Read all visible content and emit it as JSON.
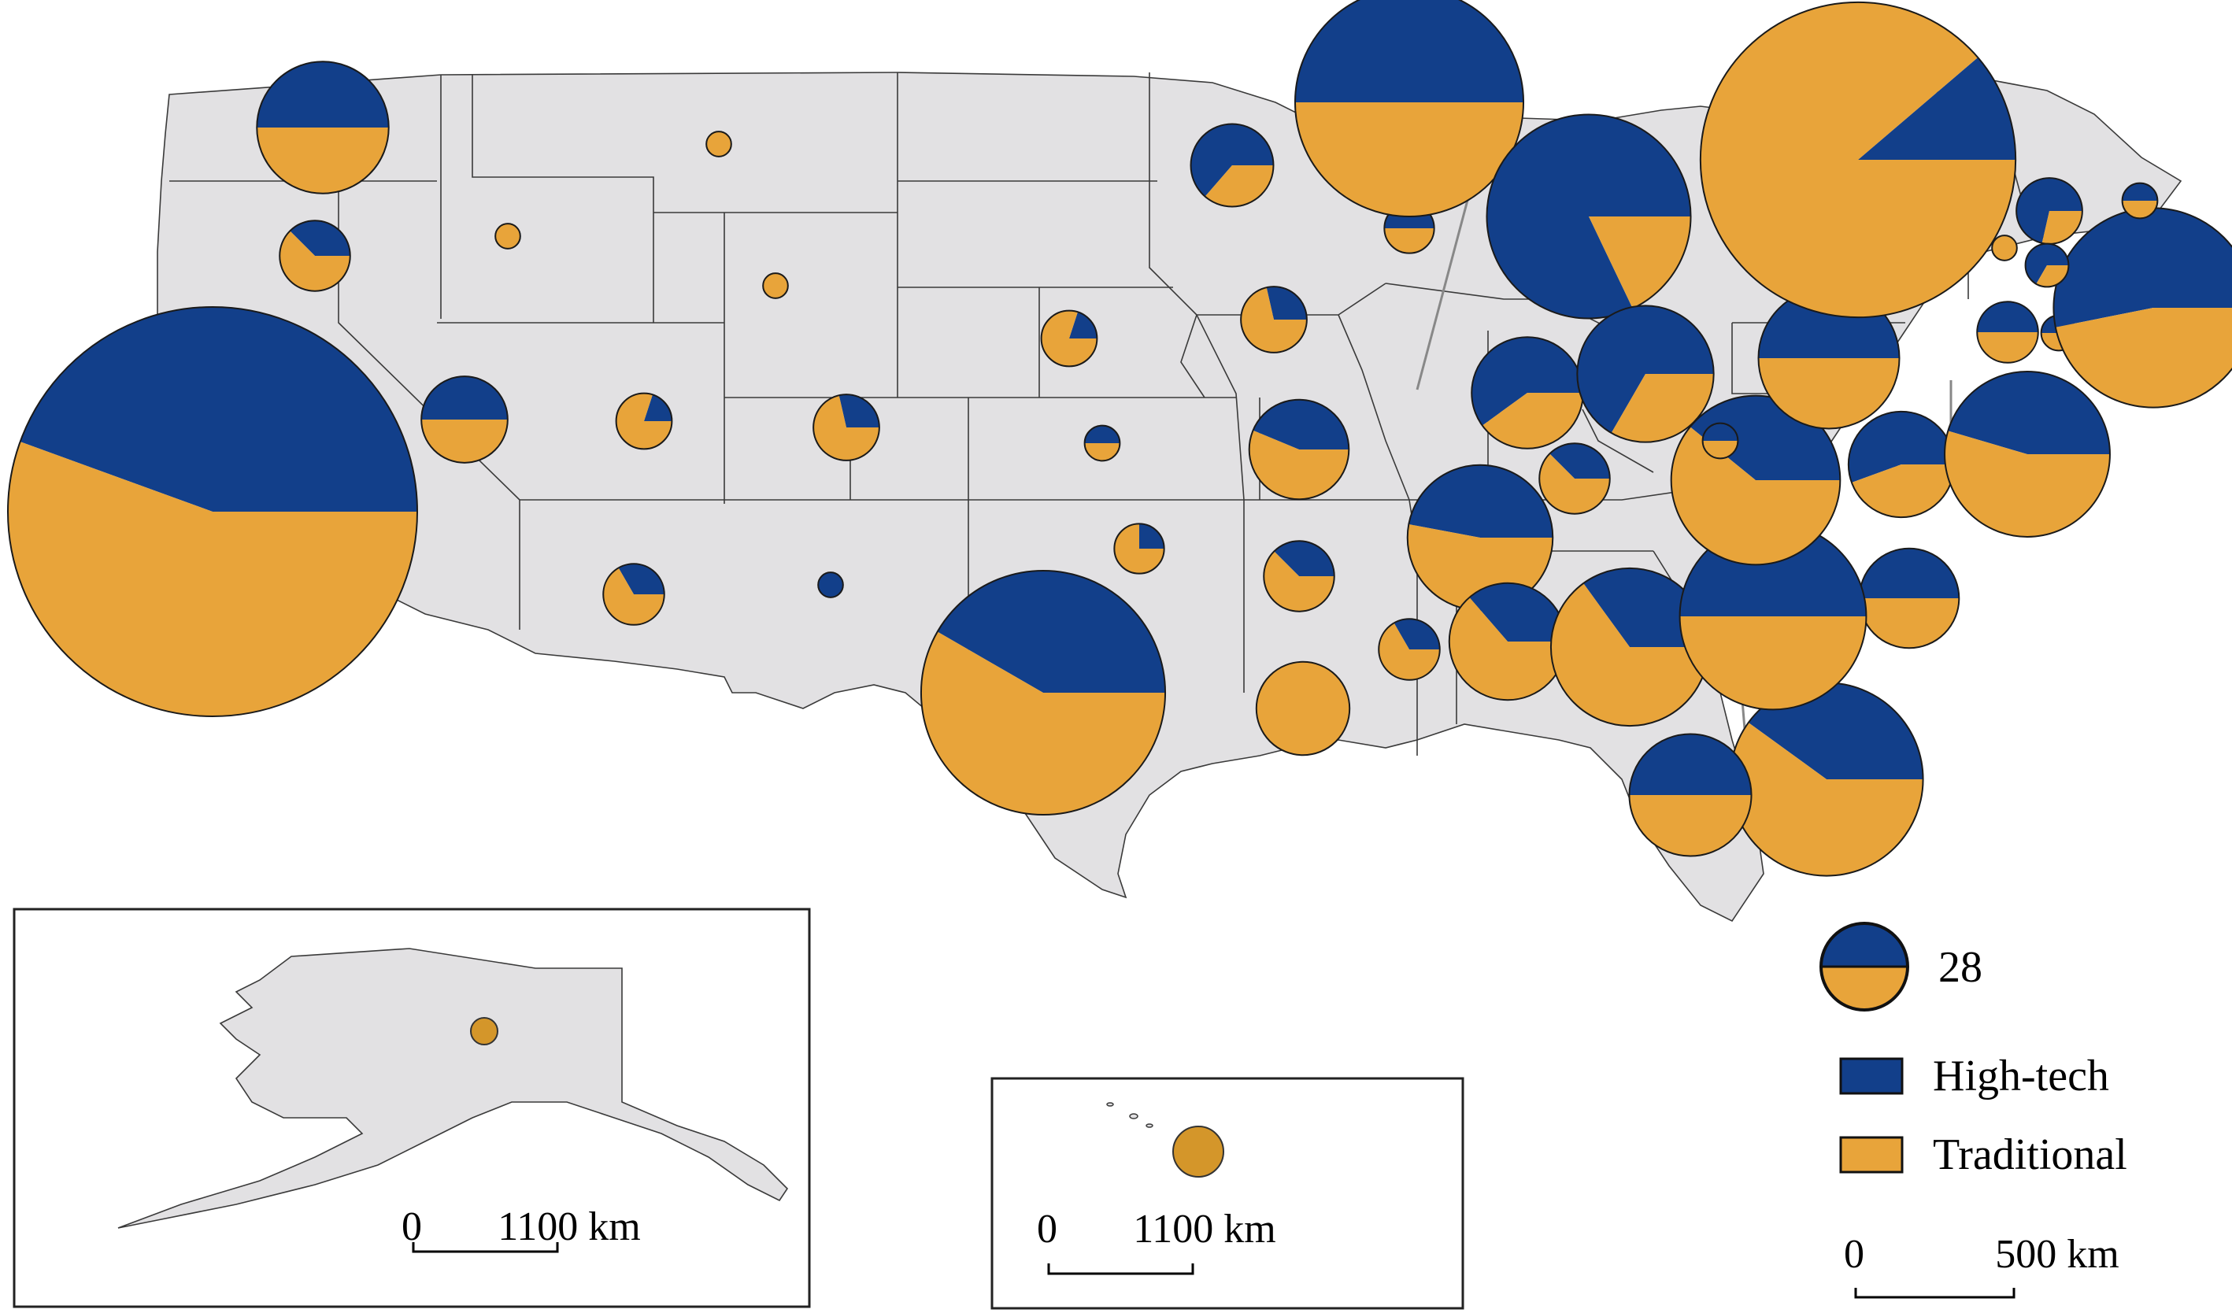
{
  "colors": {
    "high_tech": "#123f8a",
    "traditional": "#e8a43a",
    "state_fill": "#e2e1e3",
    "hawaii_symbol": "#d4962a",
    "alaska_symbol": "#d4962a"
  },
  "legend": {
    "size_value": "28",
    "categories": [
      {
        "label": "High-tech",
        "color": "#123f8a"
      },
      {
        "label": "Traditional",
        "color": "#e8a43a"
      }
    ]
  },
  "scale_bars": {
    "main": {
      "zero": "0",
      "end": "500 km"
    },
    "alaska": {
      "zero": "0",
      "end": "1100 km"
    },
    "hawaii": {
      "zero": "0",
      "end": "1100 km"
    }
  },
  "chart_data": {
    "type": "pie",
    "series_names": [
      "High-tech",
      "Traditional"
    ],
    "note_units": "values are counts; circle area proportional to total",
    "pies": [
      {
        "state": "California",
        "high_tech": 120,
        "traditional": 150
      },
      {
        "state": "Washington",
        "high_tech": 14,
        "traditional": 14
      },
      {
        "state": "Oregon",
        "high_tech": 3,
        "traditional": 5
      },
      {
        "state": "Idaho",
        "high_tech": 0,
        "traditional": 1
      },
      {
        "state": "Montana",
        "high_tech": 0,
        "traditional": 1
      },
      {
        "state": "Wyoming",
        "high_tech": 0,
        "traditional": 1
      },
      {
        "state": "Nevada",
        "high_tech": 6,
        "traditional": 6
      },
      {
        "state": "Utah",
        "high_tech": 1,
        "traditional": 4
      },
      {
        "state": "Colorado",
        "high_tech": 2,
        "traditional": 5
      },
      {
        "state": "Arizona",
        "high_tech": 2,
        "traditional": 4
      },
      {
        "state": "New Mexico",
        "high_tech": 1,
        "traditional": 0
      },
      {
        "state": "Nebraska",
        "high_tech": 1,
        "traditional": 4
      },
      {
        "state": "Kansas",
        "high_tech": 1,
        "traditional": 1
      },
      {
        "state": "Oklahoma",
        "high_tech": 1,
        "traditional": 3
      },
      {
        "state": "Texas",
        "high_tech": 40,
        "traditional": 56
      },
      {
        "state": "Minnesota",
        "high_tech": 7,
        "traditional": 4
      },
      {
        "state": "Iowa",
        "high_tech": 2,
        "traditional": 5
      },
      {
        "state": "Missouri",
        "high_tech": 7,
        "traditional": 9
      },
      {
        "state": "Arkansas",
        "high_tech": 3,
        "traditional": 5
      },
      {
        "state": "Louisiana",
        "high_tech": 0,
        "traditional": 14
      },
      {
        "state": "Wisconsin",
        "high_tech": 2,
        "traditional": 2
      },
      {
        "state": "Illinois",
        "high_tech": 42,
        "traditional": 42
      },
      {
        "state": "Michigan",
        "high_tech": 55,
        "traditional": 12
      },
      {
        "state": "Indiana",
        "high_tech": 12,
        "traditional": 8
      },
      {
        "state": "Ohio",
        "high_tech": 20,
        "traditional": 10
      },
      {
        "state": "Kentucky",
        "high_tech": 3,
        "traditional": 5
      },
      {
        "state": "Tennessee",
        "high_tech": 16,
        "traditional": 18
      },
      {
        "state": "Mississippi",
        "high_tech": 2,
        "traditional": 4
      },
      {
        "state": "Alabama",
        "high_tech": 8,
        "traditional": 14
      },
      {
        "state": "Georgia",
        "high_tech": 14,
        "traditional": 26
      },
      {
        "state": "Florida",
        "high_tech": 24,
        "traditional": 36
      },
      {
        "state": "Florida (second symbol)",
        "high_tech": 12,
        "traditional": 12
      },
      {
        "state": "South Carolina",
        "high_tech": 8,
        "traditional": 8
      },
      {
        "state": "North Carolina",
        "high_tech": 28,
        "traditional": 28
      },
      {
        "state": "Virginia",
        "high_tech": 18,
        "traditional": 28
      },
      {
        "state": "West Virginia",
        "high_tech": 1,
        "traditional": 1
      },
      {
        "state": "Maryland",
        "high_tech": 10,
        "traditional": 8
      },
      {
        "state": "Delaware",
        "high_tech": 20,
        "traditional": 24
      },
      {
        "state": "Pennsylvania",
        "high_tech": 16,
        "traditional": 16
      },
      {
        "state": "New York",
        "high_tech": 18,
        "traditional": 142
      },
      {
        "state": "New Jersey",
        "high_tech": 5,
        "traditional": 2
      },
      {
        "state": "Connecticut",
        "high_tech": 3,
        "traditional": 3
      },
      {
        "state": "Rhode Island",
        "high_tech": 1,
        "traditional": 1
      },
      {
        "state": "Massachusetts",
        "high_tech": 34,
        "traditional": 30
      },
      {
        "state": "Vermont",
        "high_tech": 0,
        "traditional": 1
      },
      {
        "state": "New Hampshire",
        "high_tech": 2,
        "traditional": 1
      },
      {
        "state": "Maine",
        "high_tech": 1,
        "traditional": 1
      },
      {
        "state": "Alaska",
        "high_tech": 0,
        "traditional": 1
      },
      {
        "state": "Hawaii",
        "high_tech": 0,
        "traditional": 4
      }
    ]
  }
}
